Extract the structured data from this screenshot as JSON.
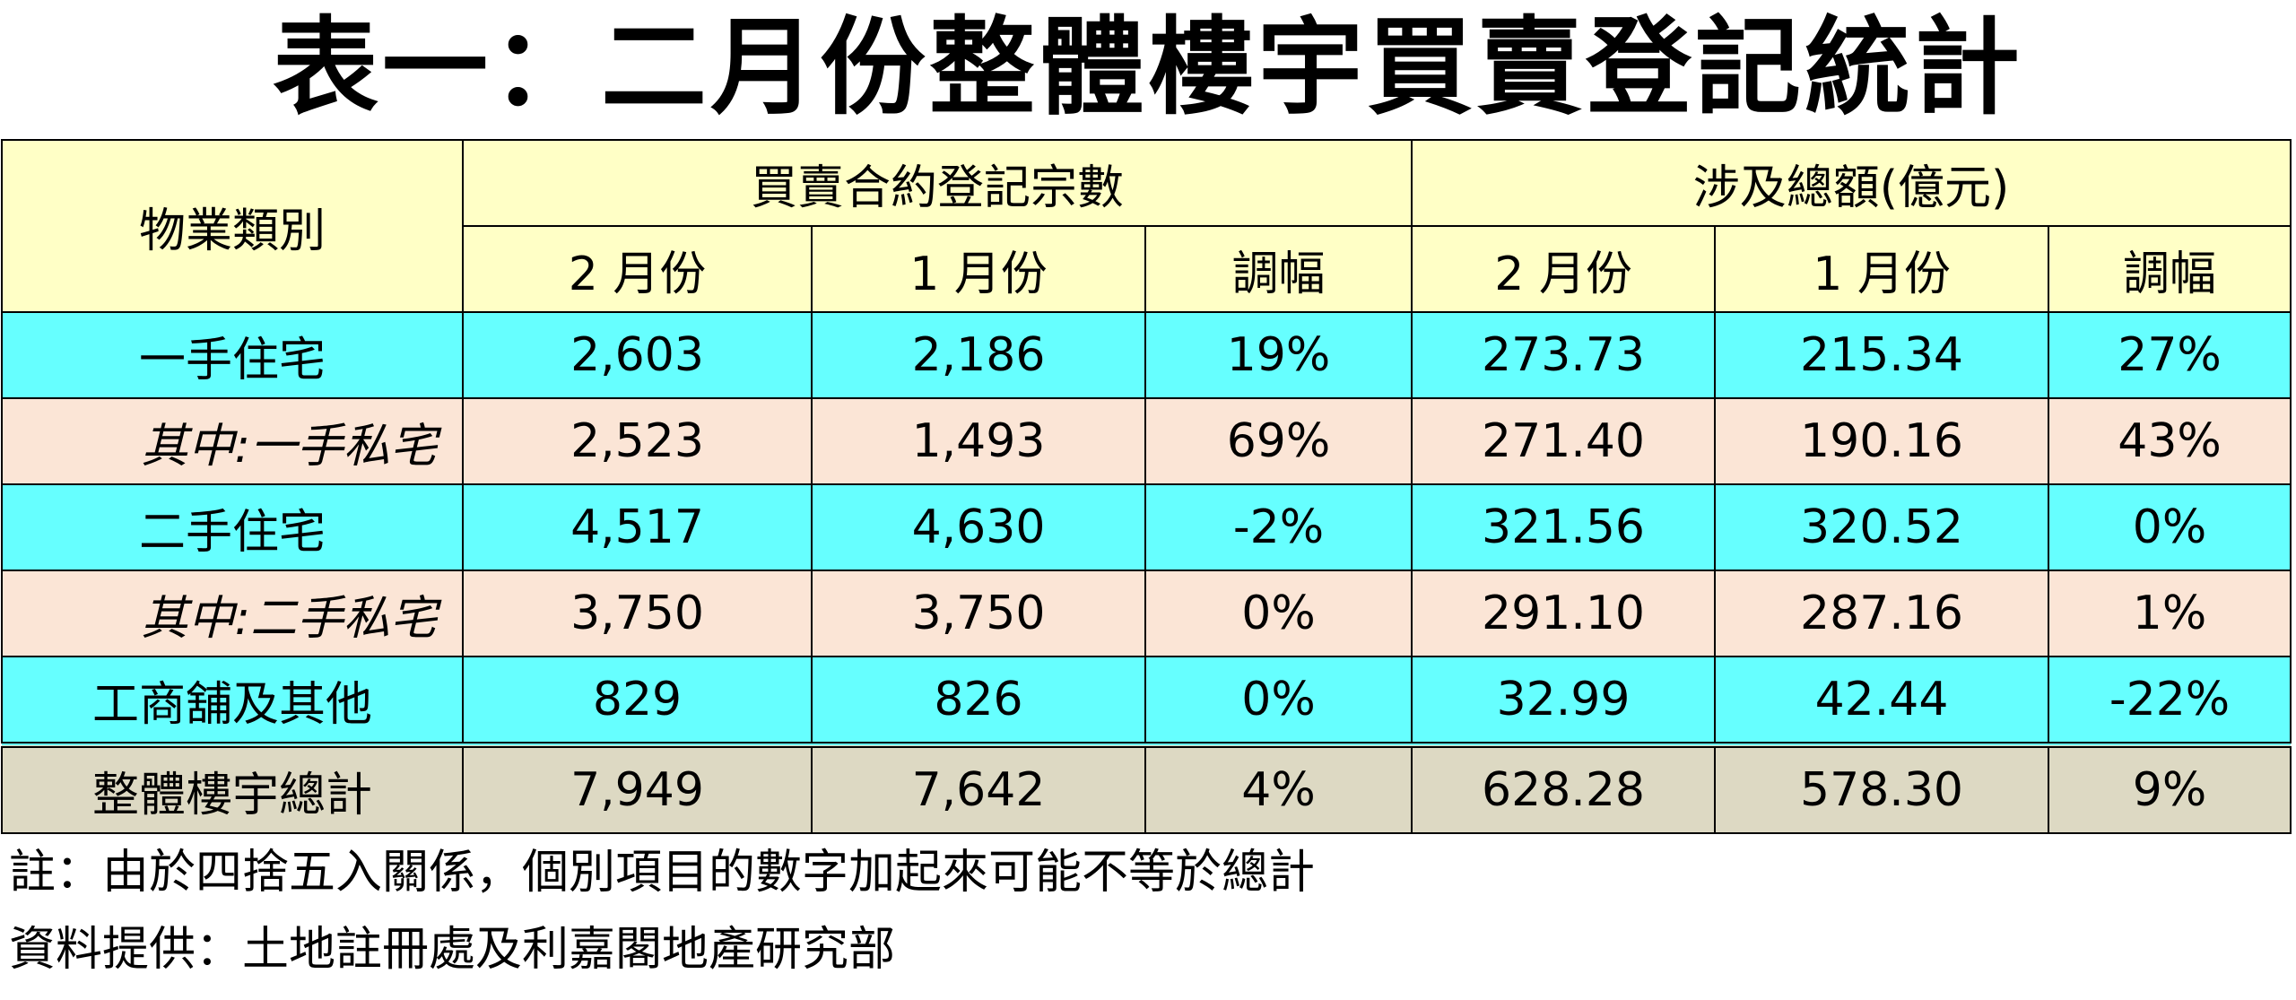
{
  "title": "表一：二月份整體樓宇買賣登記統計",
  "table": {
    "header": {
      "category": "物業類別",
      "group1": "買賣合約登記宗數",
      "group2": "涉及總額(億元)",
      "sub": [
        "2 月份",
        "1 月份",
        "調幅",
        "2 月份",
        "1 月份",
        "調幅"
      ]
    },
    "rows": [
      [
        "一手住宅",
        "2,603",
        "2,186",
        "19%",
        "273.73",
        "215.34",
        "27%"
      ],
      [
        "其中:一手私宅",
        "2,523",
        "1,493",
        "69%",
        "271.40",
        "190.16",
        "43%"
      ],
      [
        "二手住宅",
        "4,517",
        "4,630",
        "-2%",
        "321.56",
        "320.52",
        "0%"
      ],
      [
        "其中:二手私宅",
        "3,750",
        "3,750",
        "0%",
        "291.10",
        "287.16",
        "1%"
      ],
      [
        "工商舖及其他",
        "829",
        "826",
        "0%",
        "32.99",
        "42.44",
        "-22%"
      ],
      [
        "整體樓宇總計",
        "7,949",
        "7,642",
        "4%",
        "628.28",
        "578.30",
        "9%"
      ]
    ]
  },
  "notes": [
    "註：由於四捨五入關係，個別項目的數字加起來可能不等於總計",
    "資料提供：土地註冊處及利嘉閣地產研究部"
  ]
}
